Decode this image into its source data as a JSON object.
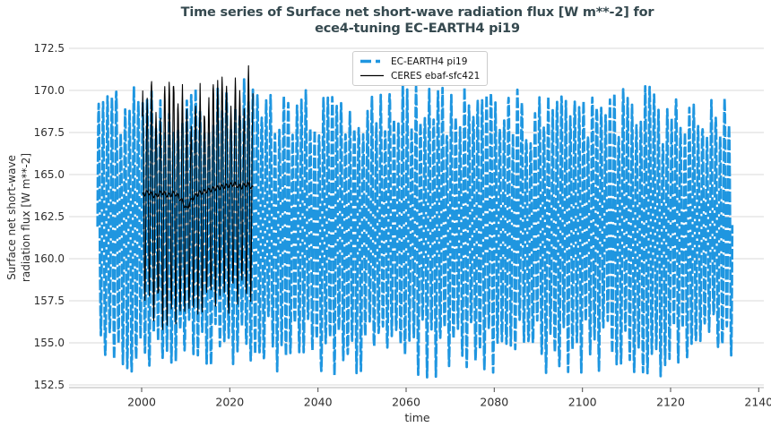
{
  "header": {
    "title_line1": "Time series of Surface net short-wave radiation flux [W m**-2] for",
    "title_line2": "ece4-tuning EC-EARTH4 pi19"
  },
  "axes": {
    "xlabel": "time",
    "ylabel_line1": "Surface net short-wave",
    "ylabel_line2": "radiation flux [W m**-2]",
    "xtick_labels": [
      "2000",
      "2020",
      "2040",
      "2060",
      "2080",
      "2100",
      "2120",
      "2140"
    ],
    "ytick_labels": [
      "152.5",
      "155.0",
      "157.5",
      "160.0",
      "162.5",
      "165.0",
      "167.5",
      "170.0",
      "172.5"
    ]
  },
  "legend": {
    "items": [
      {
        "label": "EC-EARTH4 pi19",
        "color": "#1f96e0",
        "style": "dashed-thick"
      },
      {
        "label": "CERES ebaf-sfc421",
        "color": "#000000",
        "style": "solid-thin"
      }
    ]
  },
  "colors": {
    "title": "#35494f",
    "blue_series": "#1f96e0",
    "black_series": "#000000",
    "gridline": "#d8d8d8",
    "spine": "#c4c4c4",
    "tick_text": "#2e2e2e"
  },
  "chart_data": {
    "type": "line",
    "title": "Time series of Surface net short-wave radiation flux [W m**-2] for ece4-tuning EC-EARTH4 pi19",
    "xlabel": "time",
    "ylabel": "Surface net short-wave radiation flux [W m**-2]",
    "xlim": [
      1983.7,
      2141.4
    ],
    "ylim": [
      152.5,
      172.5
    ],
    "xticks": [
      2000,
      2020,
      2040,
      2060,
      2080,
      2100,
      2120,
      2140
    ],
    "yticks": [
      152.5,
      155.0,
      157.5,
      160.0,
      162.5,
      165.0,
      167.5,
      170.0,
      172.5
    ],
    "grid": "horizontal",
    "legend_position": "upper center",
    "series": [
      {
        "name": "EC-EARTH4 pi19",
        "color": "#1f96e0",
        "line_style": "dashed",
        "line_width": 2.8,
        "sampling": "monthly",
        "x_start": 1990.0,
        "x_end": 2134.0,
        "annual_cycle": {
          "mean": 161.8,
          "amp_high": 6.9,
          "amp_high_var": 1.7,
          "amp_low": 7.0,
          "amp_low_var": 1.7,
          "noise": 0.4
        },
        "envelope": {
          "annual_max_range": [
            166.9,
            170.5
          ],
          "annual_min_range": [
            153.0,
            156.9
          ]
        },
        "seed": 20417
      },
      {
        "name": "CERES ebaf-sfc421",
        "color": "#000000",
        "line_style": "solid",
        "line_width": 1.1,
        "sampling": "monthly",
        "x_start": 2000.17,
        "x_end": 2025.33,
        "annual_cycle": {
          "mean": 163.85,
          "amp_high": 5.6,
          "amp_high_var": 1.4,
          "amp_low": 6.9,
          "amp_low_var": 1.0,
          "noise": 0.45
        },
        "envelope": {
          "annual_max_range": [
            167.5,
            170.6
          ],
          "annual_min_range": [
            156.1,
            158.4
          ]
        },
        "rolling_mean_anchors": [
          [
            2000.2,
            163.8
          ],
          [
            2001.5,
            163.95
          ],
          [
            2003.0,
            163.7
          ],
          [
            2004.5,
            163.95
          ],
          [
            2006.0,
            163.75
          ],
          [
            2007.5,
            163.9
          ],
          [
            2009.0,
            163.5
          ],
          [
            2010.2,
            162.95
          ],
          [
            2011.5,
            163.6
          ],
          [
            2013.0,
            163.9
          ],
          [
            2015.0,
            164.05
          ],
          [
            2017.0,
            164.2
          ],
          [
            2019.0,
            164.3
          ],
          [
            2021.0,
            164.45
          ],
          [
            2022.5,
            164.25
          ],
          [
            2024.0,
            164.45
          ],
          [
            2025.33,
            164.15
          ]
        ],
        "seed": 99173
      }
    ]
  }
}
